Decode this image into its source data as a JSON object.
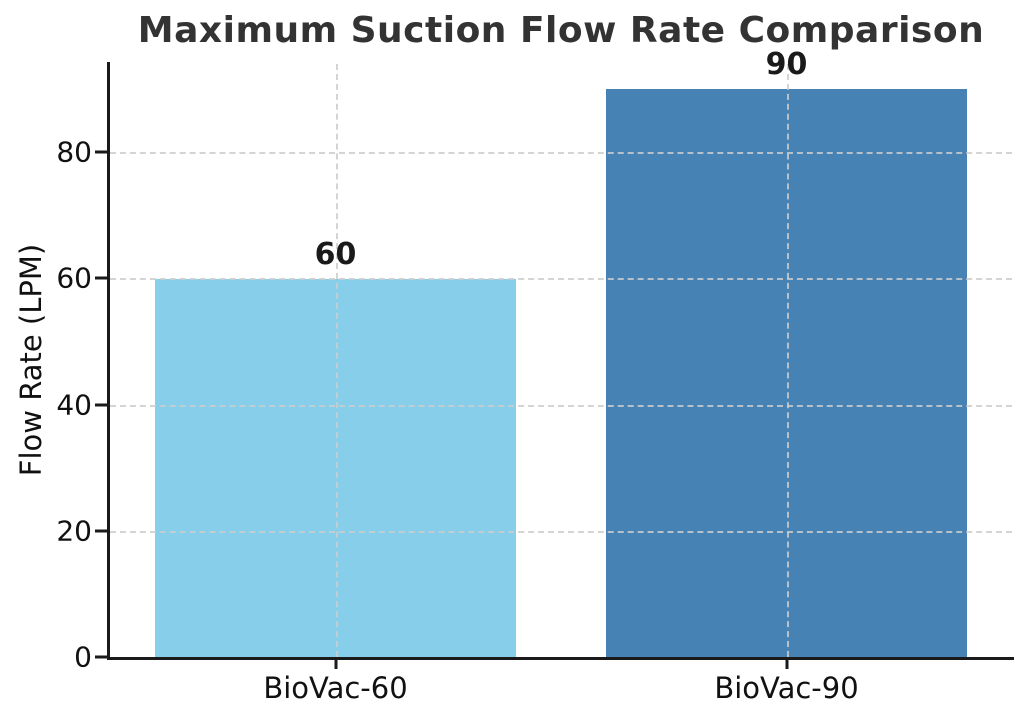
{
  "chart_data": {
    "type": "bar",
    "title": "Maximum Suction Flow Rate Comparison",
    "xlabel": "",
    "ylabel": "Flow Rate (LPM)",
    "categories": [
      "BioVac-60",
      "BioVac-90"
    ],
    "values": [
      60,
      90
    ],
    "value_labels": [
      "60",
      "90"
    ],
    "bar_colors": [
      "#87CEEB",
      "#4682B4"
    ],
    "yticks": [
      0,
      20,
      40,
      60,
      80
    ],
    "ylim": [
      0,
      94
    ],
    "bar_width_fraction": 0.8,
    "grid": {
      "visible": true,
      "style": "dashed",
      "color": "#cccccc",
      "axis": "both"
    },
    "legend": "none",
    "colors": {
      "title": "#333333",
      "axis": "#1a1a1a",
      "tick_label": "#111111",
      "background": "#ffffff"
    }
  }
}
